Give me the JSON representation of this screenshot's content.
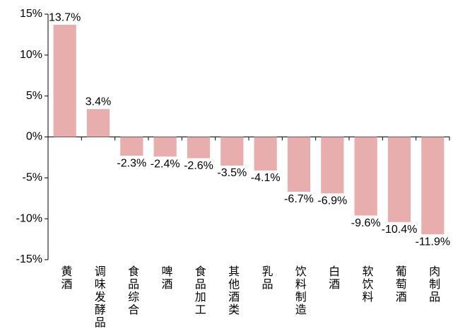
{
  "chart_data": {
    "type": "bar",
    "categories": [
      "黄酒",
      "调味发酵品",
      "食品综合",
      "啤酒",
      "食品加工",
      "其他酒类",
      "乳品",
      "饮料制造",
      "白酒",
      "软饮料",
      "葡萄酒",
      "肉制品"
    ],
    "values": [
      13.7,
      3.4,
      -2.3,
      -2.4,
      -2.6,
      -3.5,
      -4.1,
      -6.7,
      -6.9,
      -9.6,
      -10.4,
      -11.9
    ],
    "value_labels": [
      "13.7%",
      "3.4%",
      "-2.3%",
      "-2.4%",
      "-2.6%",
      "-3.5%",
      "-4.1%",
      "-6.7%",
      "-6.9%",
      "-9.6%",
      "-10.4%",
      "-11.9%"
    ],
    "color": "#e8adad",
    "ylim": [
      -15,
      15
    ],
    "yticks": [
      {
        "value": 15,
        "label": "15%"
      },
      {
        "value": 10,
        "label": "10%"
      },
      {
        "value": 5,
        "label": "5%"
      },
      {
        "value": 0,
        "label": "0%"
      },
      {
        "value": -5,
        "label": "-5%"
      },
      {
        "value": -10,
        "label": "-10%"
      },
      {
        "value": -15,
        "label": "-15%"
      }
    ]
  }
}
